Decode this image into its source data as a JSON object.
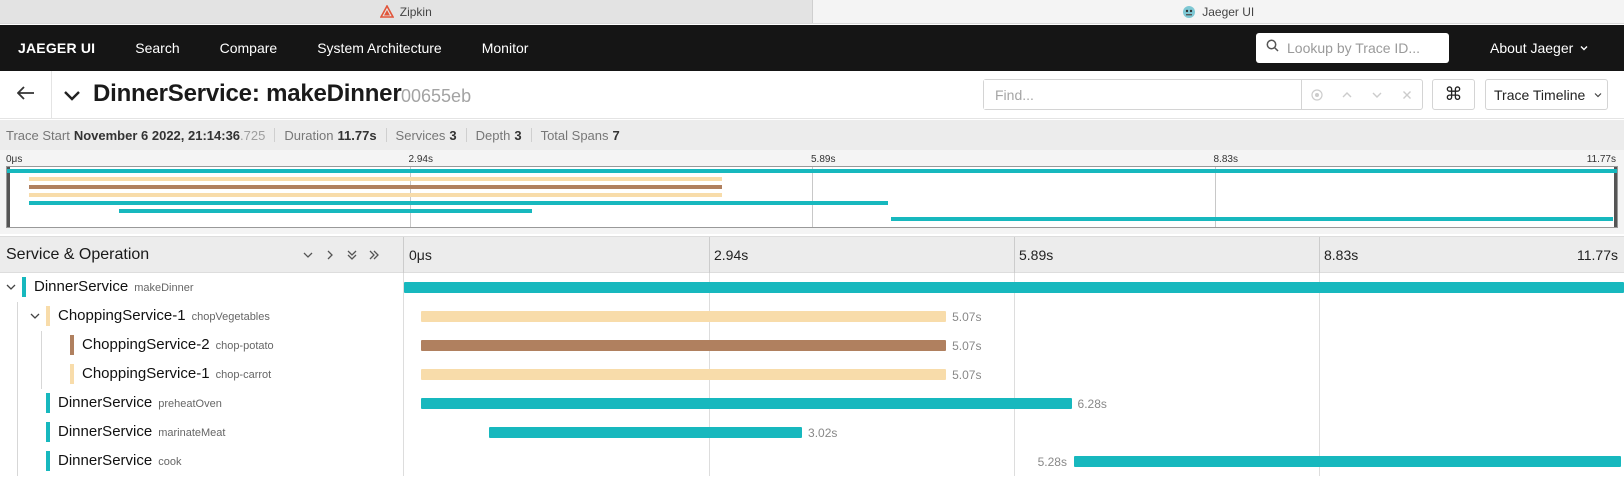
{
  "browser_tabs": [
    {
      "label": "Zipkin",
      "icon": "zipkin-icon",
      "active": false
    },
    {
      "label": "Jaeger UI",
      "icon": "jaeger-icon",
      "active": true
    }
  ],
  "nav": {
    "brand": "JAEGER UI",
    "links": [
      "Search",
      "Compare",
      "System Architecture",
      "Monitor"
    ],
    "lookup_placeholder": "Lookup by Trace ID...",
    "about": "About Jaeger"
  },
  "trace": {
    "title": "DinnerService: makeDinner",
    "id": "00655eb",
    "find_placeholder": "Find...",
    "view_mode": "Trace Timeline",
    "keyboard_icon_glyph": "⌘"
  },
  "summary": {
    "start_label": "Trace Start",
    "start_value": "November 6 2022, 21:14:36",
    "start_ms": ".725",
    "duration_label": "Duration",
    "duration_value": "11.77s",
    "services_label": "Services",
    "services_value": "3",
    "depth_label": "Depth",
    "depth_value": "3",
    "spans_label": "Total Spans",
    "spans_value": "7"
  },
  "timeline": {
    "ticks": [
      "0μs",
      "2.94s",
      "5.89s",
      "8.83s",
      "11.77s"
    ],
    "total_seconds": 11.77,
    "column_header": "Service & Operation"
  },
  "colors": {
    "DinnerService": "#17b8be",
    "ChoppingService-1": "#f8dcaa",
    "ChoppingService-2": "#b0805f"
  },
  "spans": [
    {
      "service": "DinnerService",
      "operation": "makeDinner",
      "depth": 0,
      "has_children": true,
      "start": 0,
      "duration": 11.77,
      "duration_label": ""
    },
    {
      "service": "ChoppingService-1",
      "operation": "chopVegetables",
      "depth": 1,
      "has_children": true,
      "start": 0.16,
      "duration": 5.07,
      "duration_label": "5.07s"
    },
    {
      "service": "ChoppingService-2",
      "operation": "chop-potato",
      "depth": 2,
      "has_children": false,
      "start": 0.16,
      "duration": 5.07,
      "duration_label": "5.07s"
    },
    {
      "service": "ChoppingService-1",
      "operation": "chop-carrot",
      "depth": 2,
      "has_children": false,
      "start": 0.16,
      "duration": 5.07,
      "duration_label": "5.07s"
    },
    {
      "service": "DinnerService",
      "operation": "preheatOven",
      "depth": 1,
      "has_children": false,
      "start": 0.16,
      "duration": 6.28,
      "duration_label": "6.28s"
    },
    {
      "service": "DinnerService",
      "operation": "marinateMeat",
      "depth": 1,
      "has_children": false,
      "start": 0.82,
      "duration": 3.02,
      "duration_label": "3.02s"
    },
    {
      "service": "DinnerService",
      "operation": "cook",
      "depth": 1,
      "has_children": false,
      "start": 6.46,
      "duration": 5.28,
      "duration_label": "5.28s"
    }
  ]
}
